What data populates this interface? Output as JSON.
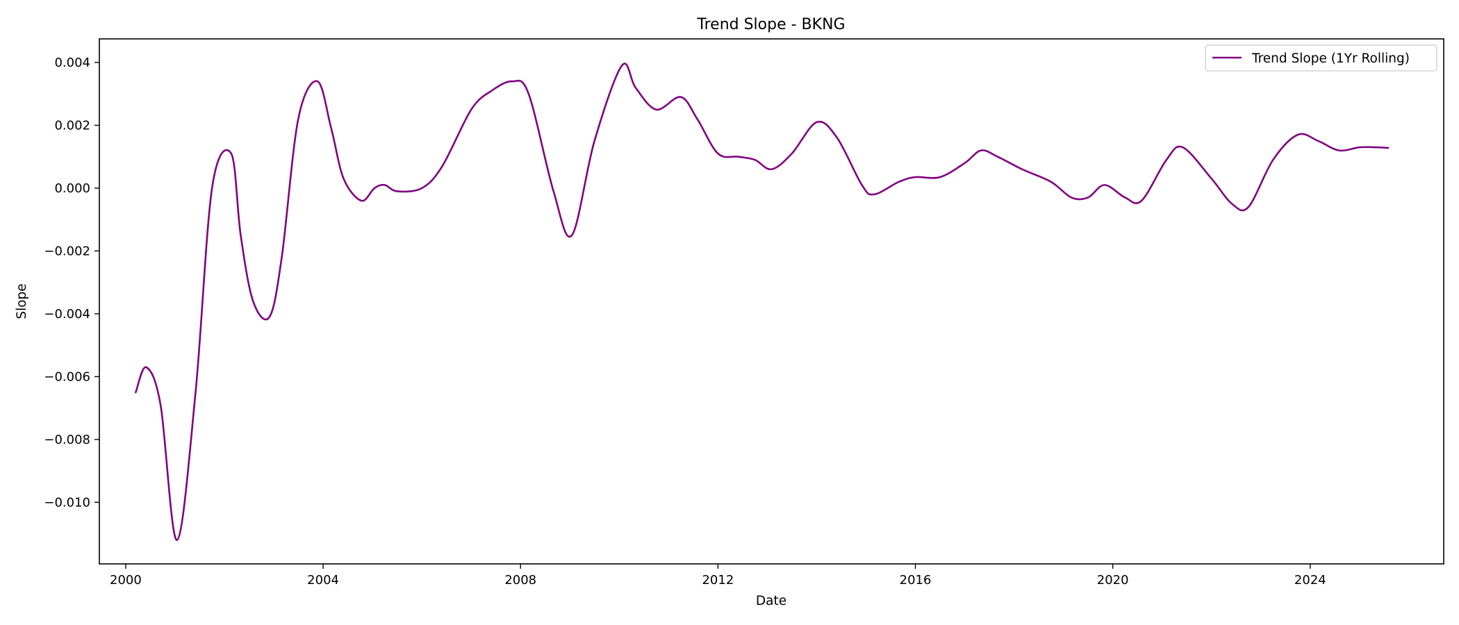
{
  "chart_data": {
    "type": "line",
    "title": "Trend Slope - BKNG",
    "xlabel": "Date",
    "ylabel": "Slope",
    "xlim": [
      "1999-06-20",
      "2026-09-15"
    ],
    "ylim": [
      -0.01196,
      0.00475
    ],
    "x_ticks": [
      "2000-01-01",
      "2004-01-01",
      "2008-01-01",
      "2012-01-01",
      "2016-01-01",
      "2020-01-01",
      "2024-01-01"
    ],
    "x_tick_labels": [
      "2000",
      "2004",
      "2008",
      "2012",
      "2016",
      "2020",
      "2024"
    ],
    "y_ticks": [
      0.004,
      0.002,
      0.0,
      -0.002,
      -0.004,
      -0.006,
      -0.008,
      -0.01
    ],
    "y_tick_labels": [
      "0.004",
      "0.002",
      "0.000",
      "−0.002",
      "−0.004",
      "−0.006",
      "−0.008",
      "−0.010"
    ],
    "grid": false,
    "legend_position": "top-right",
    "series": [
      {
        "name": "Trend Slope (1Yr Rolling)",
        "color": "#800080",
        "points": [
          [
            "2000-03-15",
            -0.0065
          ],
          [
            "2000-06-01",
            -0.0057
          ],
          [
            "2000-09-15",
            -0.0069
          ],
          [
            "2001-01-15",
            -0.0112
          ],
          [
            "2001-06-01",
            -0.0065
          ],
          [
            "2001-10-01",
            0.0
          ],
          [
            "2002-02-20",
            0.0011
          ],
          [
            "2002-05-01",
            -0.0015
          ],
          [
            "2002-08-01",
            -0.0036
          ],
          [
            "2002-11-30",
            -0.0041
          ],
          [
            "2003-03-01",
            -0.0022
          ],
          [
            "2003-07-01",
            0.0022
          ],
          [
            "2003-11-20",
            0.0034
          ],
          [
            "2004-03-01",
            0.0019
          ],
          [
            "2004-06-01",
            0.0003
          ],
          [
            "2004-10-10",
            -0.0004
          ],
          [
            "2005-01-15",
            0.0
          ],
          [
            "2005-04-01",
            0.0001
          ],
          [
            "2005-07-01",
            -0.0001
          ],
          [
            "2006-01-01",
            0.0
          ],
          [
            "2006-06-01",
            0.0007
          ],
          [
            "2007-01-01",
            0.0025
          ],
          [
            "2007-06-01",
            0.0031
          ],
          [
            "2007-11-01",
            0.0034
          ],
          [
            "2008-03-01",
            0.003
          ],
          [
            "2008-09-01",
            -0.0001
          ],
          [
            "2009-01-15",
            -0.0015
          ],
          [
            "2009-07-01",
            0.0015
          ],
          [
            "2010-01-20",
            0.0039
          ],
          [
            "2010-05-01",
            0.0032
          ],
          [
            "2010-10-01",
            0.0025
          ],
          [
            "2011-04-01",
            0.0029
          ],
          [
            "2011-08-01",
            0.0022
          ],
          [
            "2012-01-01",
            0.0011
          ],
          [
            "2012-06-01",
            0.001
          ],
          [
            "2012-10-01",
            0.0009
          ],
          [
            "2013-02-01",
            0.0006
          ],
          [
            "2013-07-01",
            0.0011
          ],
          [
            "2014-01-01",
            0.0021
          ],
          [
            "2014-06-01",
            0.0016
          ],
          [
            "2014-12-01",
            0.0001
          ],
          [
            "2015-03-01",
            -0.0002
          ],
          [
            "2015-09-01",
            0.0002
          ],
          [
            "2016-01-01",
            0.00035
          ],
          [
            "2016-07-01",
            0.00035
          ],
          [
            "2017-01-01",
            0.0008
          ],
          [
            "2017-05-01",
            0.0012
          ],
          [
            "2017-09-01",
            0.001
          ],
          [
            "2018-03-01",
            0.0006
          ],
          [
            "2018-10-01",
            0.0002
          ],
          [
            "2019-03-01",
            -0.0003
          ],
          [
            "2019-07-01",
            -0.0003
          ],
          [
            "2019-11-01",
            0.0001
          ],
          [
            "2020-04-01",
            -0.0003
          ],
          [
            "2020-08-01",
            -0.0004
          ],
          [
            "2021-02-01",
            0.0009
          ],
          [
            "2021-06-01",
            0.0013
          ],
          [
            "2022-01-01",
            0.0003
          ],
          [
            "2022-06-01",
            -0.0005
          ],
          [
            "2022-10-01",
            -0.0006
          ],
          [
            "2023-04-01",
            0.0009
          ],
          [
            "2023-10-01",
            0.0017
          ],
          [
            "2024-03-01",
            0.0015
          ],
          [
            "2024-08-01",
            0.0012
          ],
          [
            "2025-01-01",
            0.0013
          ],
          [
            "2025-05-01",
            0.0013
          ],
          [
            "2025-08-01",
            0.00128
          ]
        ]
      }
    ]
  }
}
